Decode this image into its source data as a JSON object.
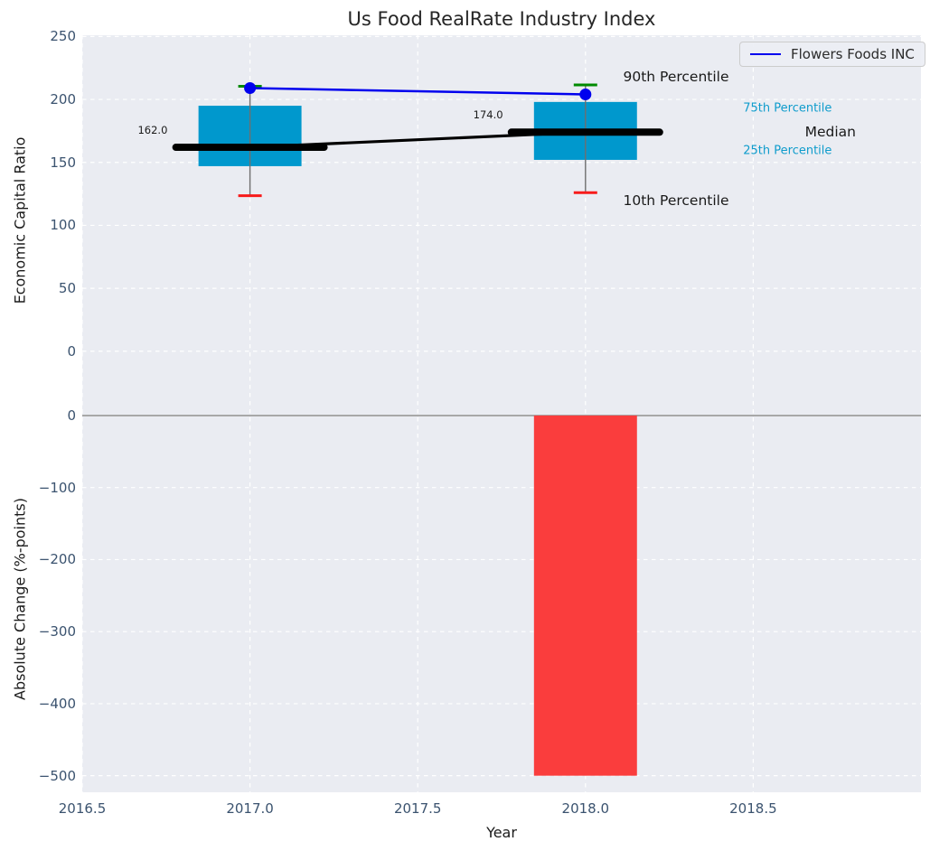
{
  "title": "Us Food RealRate Industry Index",
  "colors": {
    "axes_bg": "#eaecf2",
    "grid": "#ffffff",
    "tick_text": "#3b536f",
    "label_text": "#1a1a1a",
    "title_text": "#262626",
    "box_fill": "#0098cd",
    "percentile_text": "#0f9ccc",
    "company_line": "#0000ee",
    "median_line": "#000000",
    "whisker": "#6f6f6f",
    "cap_top_green": "#008a00",
    "cap_bottom_red": "#f71b1b",
    "bar_negative": "#fa3d3d",
    "zero_line": "#a8a8a8",
    "legend_border": "#cccccc"
  },
  "chart_data": [
    {
      "type": "box",
      "title": "Us Food RealRate Industry Index",
      "ylabel": "Economic Capital Ratio",
      "grid": true,
      "xlim": [
        2016.5,
        2019.0
      ],
      "ylim": [
        -42.5,
        251
      ],
      "yticks": [
        {
          "v": 250,
          "label": "250"
        },
        {
          "v": 200,
          "label": "200"
        },
        {
          "v": 150,
          "label": "150"
        },
        {
          "v": 100,
          "label": "100"
        },
        {
          "v": 50,
          "label": "50"
        },
        {
          "v": 0,
          "label": "0"
        }
      ],
      "legend": {
        "label": "Flowers Foods INC",
        "position": "upper right"
      },
      "box_width_years": 0.307,
      "boxes": [
        {
          "x": 2017,
          "p90": 210.5,
          "p75": 195,
          "median": 162,
          "p25": 147,
          "p10": 123.5,
          "median_label": "162.0"
        },
        {
          "x": 2018,
          "p90": 211.5,
          "p75": 198,
          "median": 174,
          "p25": 152,
          "p10": 126,
          "median_label": "174.0"
        }
      ],
      "company_series": {
        "name": "Flowers Foods INC",
        "x": [
          2017,
          2018
        ],
        "y": [
          209,
          204
        ]
      },
      "median_series": {
        "name": "Median",
        "x": [
          2017,
          2018
        ],
        "y": [
          162,
          174
        ]
      },
      "annotations": [
        {
          "text": "90th Percentile",
          "x": 2018.27,
          "y": 218,
          "style": "dark",
          "size": 15.5,
          "align": "center"
        },
        {
          "text": "75th Percentile",
          "x": 2018.47,
          "y": 193,
          "style": "cyan",
          "size": 13,
          "align": "left"
        },
        {
          "text": "Median",
          "x": 2018.73,
          "y": 174.3,
          "style": "dark",
          "size": 15.5,
          "align": "center"
        },
        {
          "text": "25th Percentile",
          "x": 2018.47,
          "y": 158.8,
          "style": "cyan",
          "size": 13,
          "align": "left"
        },
        {
          "text": "10th Percentile",
          "x": 2018.27,
          "y": 120,
          "style": "dark",
          "size": 15.5,
          "align": "center"
        },
        {
          "text": "162.0",
          "x": 2016.71,
          "y": 175.5,
          "style": "dark",
          "size": 11.5,
          "align": "center"
        },
        {
          "text": "174.0",
          "x": 2017.71,
          "y": 187.5,
          "style": "dark",
          "size": 11.5,
          "align": "center"
        }
      ]
    },
    {
      "type": "bar",
      "ylabel": "Absolute Change (%-points)",
      "xlabel": "Year",
      "grid": true,
      "ylim": [
        -523,
        15
      ],
      "yticks": [
        {
          "v": 0,
          "label": "0"
        },
        {
          "v": -100,
          "label": "−100"
        },
        {
          "v": -200,
          "label": "−200"
        },
        {
          "v": -300,
          "label": "−300"
        },
        {
          "v": -400,
          "label": "−400"
        },
        {
          "v": -500,
          "label": "−500"
        }
      ],
      "xticks": [
        {
          "v": 2016.5,
          "label": "2016.5"
        },
        {
          "v": 2017.0,
          "label": "2017.0"
        },
        {
          "v": 2017.5,
          "label": "2017.5"
        },
        {
          "v": 2018.0,
          "label": "2018.0"
        },
        {
          "v": 2018.5,
          "label": "2018.5"
        }
      ],
      "bar_width_years": 0.307,
      "bars": [
        {
          "x": 2018,
          "value": -500
        }
      ],
      "zero_line": true
    }
  ]
}
